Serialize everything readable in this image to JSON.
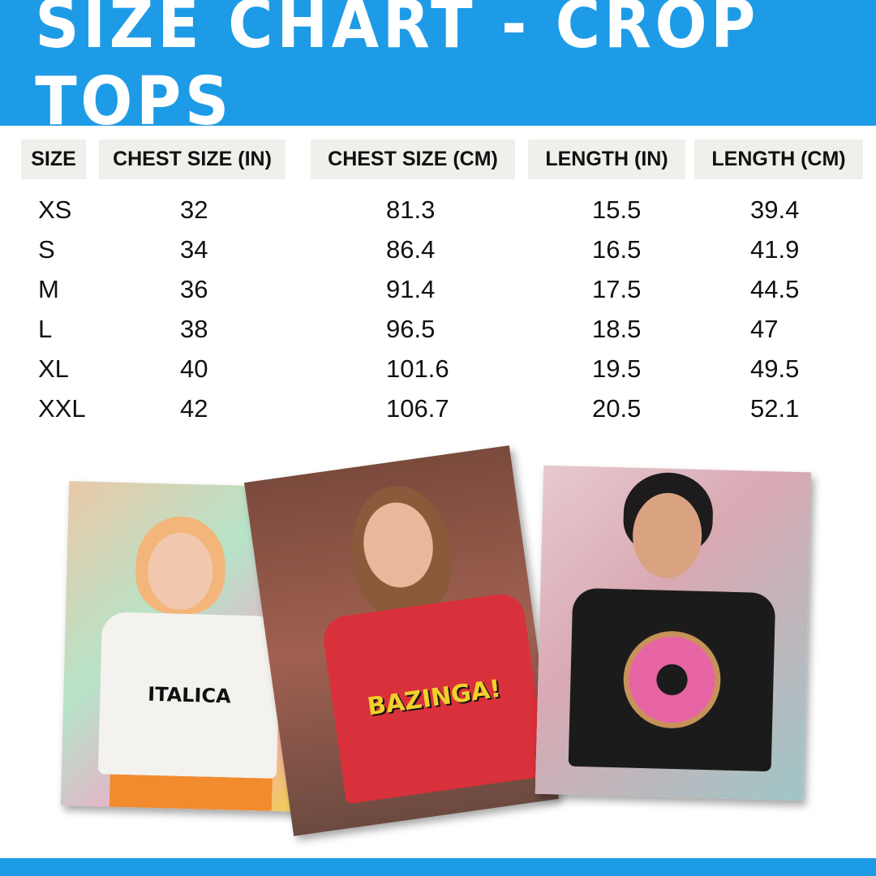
{
  "title": "SIZE CHART - CROP TOPS",
  "colors": {
    "brand_blue": "#1e9be6",
    "header_cell_bg": "#f0efeb"
  },
  "table": {
    "headers": [
      "SIZE",
      "CHEST SIZE (IN)",
      "CHEST SIZE (CM)",
      "LENGTH (IN)",
      "LENGTH (CM)"
    ],
    "rows": [
      [
        "XS",
        "32",
        "81.3",
        "15.5",
        "39.4"
      ],
      [
        "S",
        "34",
        "86.4",
        "16.5",
        "41.9"
      ],
      [
        "M",
        "36",
        "91.4",
        "17.5",
        "44.5"
      ],
      [
        "L",
        "38",
        "96.5",
        "18.5",
        "47"
      ],
      [
        "XL",
        "40",
        "101.6",
        "19.5",
        "49.5"
      ],
      [
        "XXL",
        "42",
        "106.7",
        "20.5",
        "52.1"
      ]
    ]
  },
  "photos": [
    {
      "shirt_color": "#f4f2ee",
      "print_text": "ITALICA"
    },
    {
      "shirt_color": "#d9313b",
      "print_text": "BAZINGA!"
    },
    {
      "shirt_color": "#1b1b1b",
      "print_text": ""
    }
  ]
}
